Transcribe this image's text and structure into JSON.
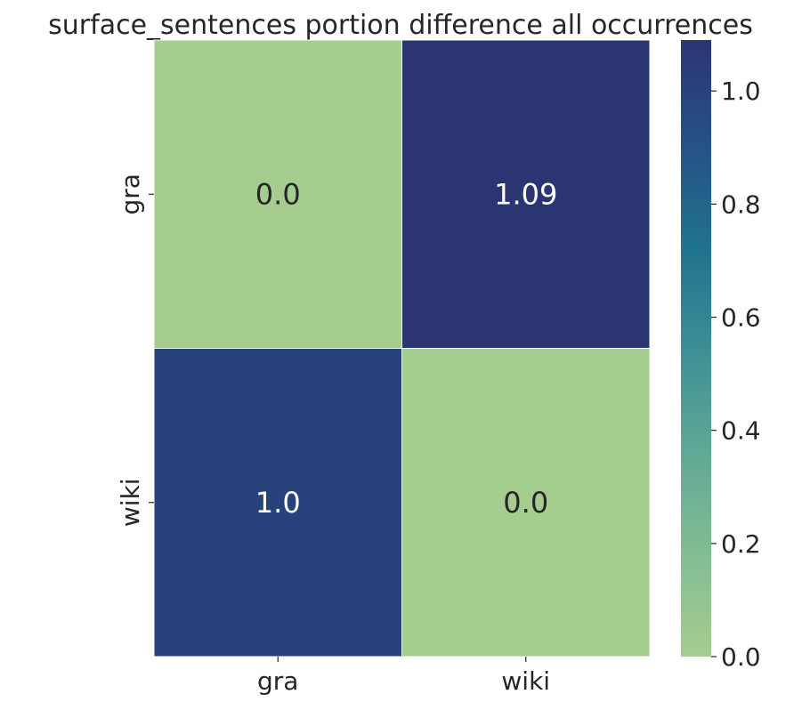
{
  "chart_data": {
    "type": "heatmap",
    "title": "surface_sentences portion difference all occurrences",
    "x_categories": [
      "gra",
      "wiki"
    ],
    "y_categories": [
      "gra",
      "wiki"
    ],
    "values": [
      [
        0.0,
        1.09
      ],
      [
        1.0,
        0.0
      ]
    ],
    "cell_labels": [
      [
        "0.0",
        "1.09"
      ],
      [
        "1.0",
        "0.0"
      ]
    ],
    "colorbar": {
      "min": 0.0,
      "max": 1.09,
      "ticks": [
        "0.0",
        "0.2",
        "0.4",
        "0.6",
        "0.8",
        "1.0"
      ],
      "colormap": [
        "#a5cd8f",
        "#82bd92",
        "#5fa895",
        "#3b8f95",
        "#1f728c",
        "#255187",
        "#2b3572"
      ]
    },
    "grid": false,
    "legend": "colorbar-right"
  }
}
